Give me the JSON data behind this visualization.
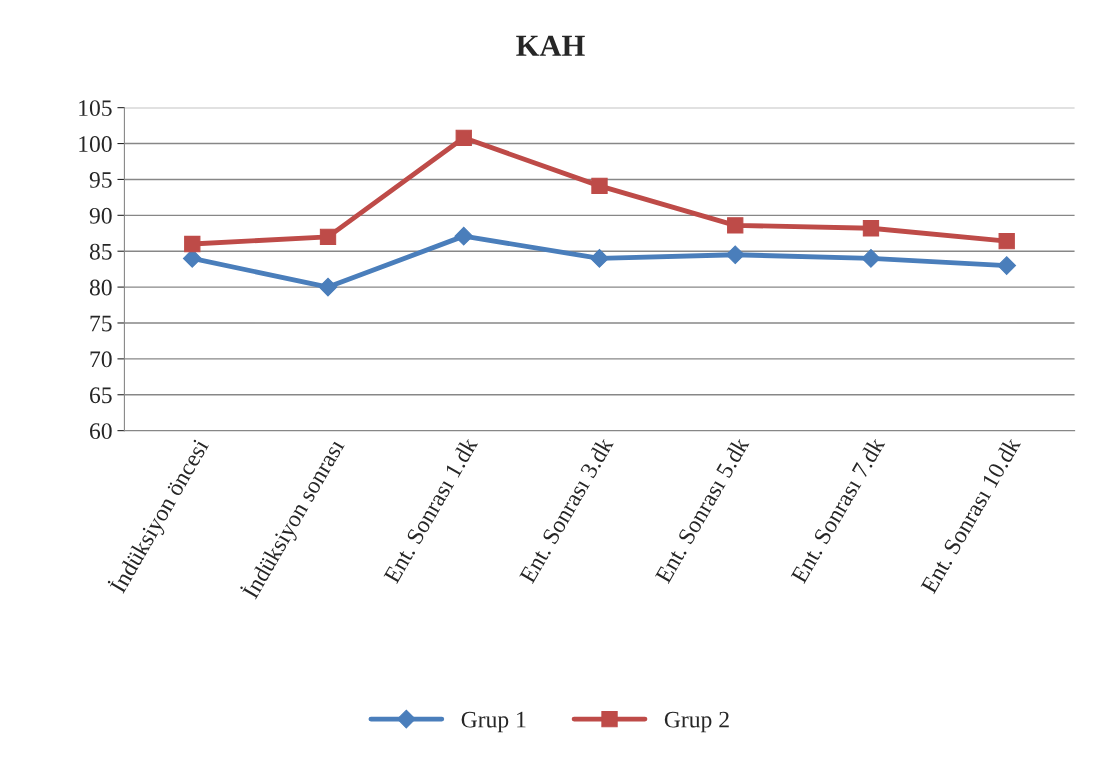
{
  "chart_data": {
    "type": "line",
    "title": "KAH",
    "categories": [
      "İndüksiyon öncesi",
      "İndüksiyon sonrası",
      "Ent. Sonrası 1.dk",
      "Ent. Sonrası 3.dk",
      "Ent. Sonrası 5.dk",
      "Ent. Sonrası 7.dk",
      "Ent. Sonrası 10.dk"
    ],
    "series": [
      {
        "name": "Grup 1",
        "color": "#4a7ebb",
        "marker": "diamond",
        "values": [
          84,
          80,
          87.1,
          84,
          84.5,
          84,
          83
        ]
      },
      {
        "name": "Grup 2",
        "color": "#be4b48",
        "marker": "square",
        "values": [
          86,
          87,
          100.8,
          94.1,
          88.6,
          88.2,
          86.4
        ]
      }
    ],
    "ylim": [
      60,
      105
    ],
    "yticks": [
      60,
      65,
      70,
      75,
      80,
      85,
      90,
      95,
      100,
      105
    ],
    "grid": "y",
    "legend": "bottom",
    "line_style": "solid"
  }
}
